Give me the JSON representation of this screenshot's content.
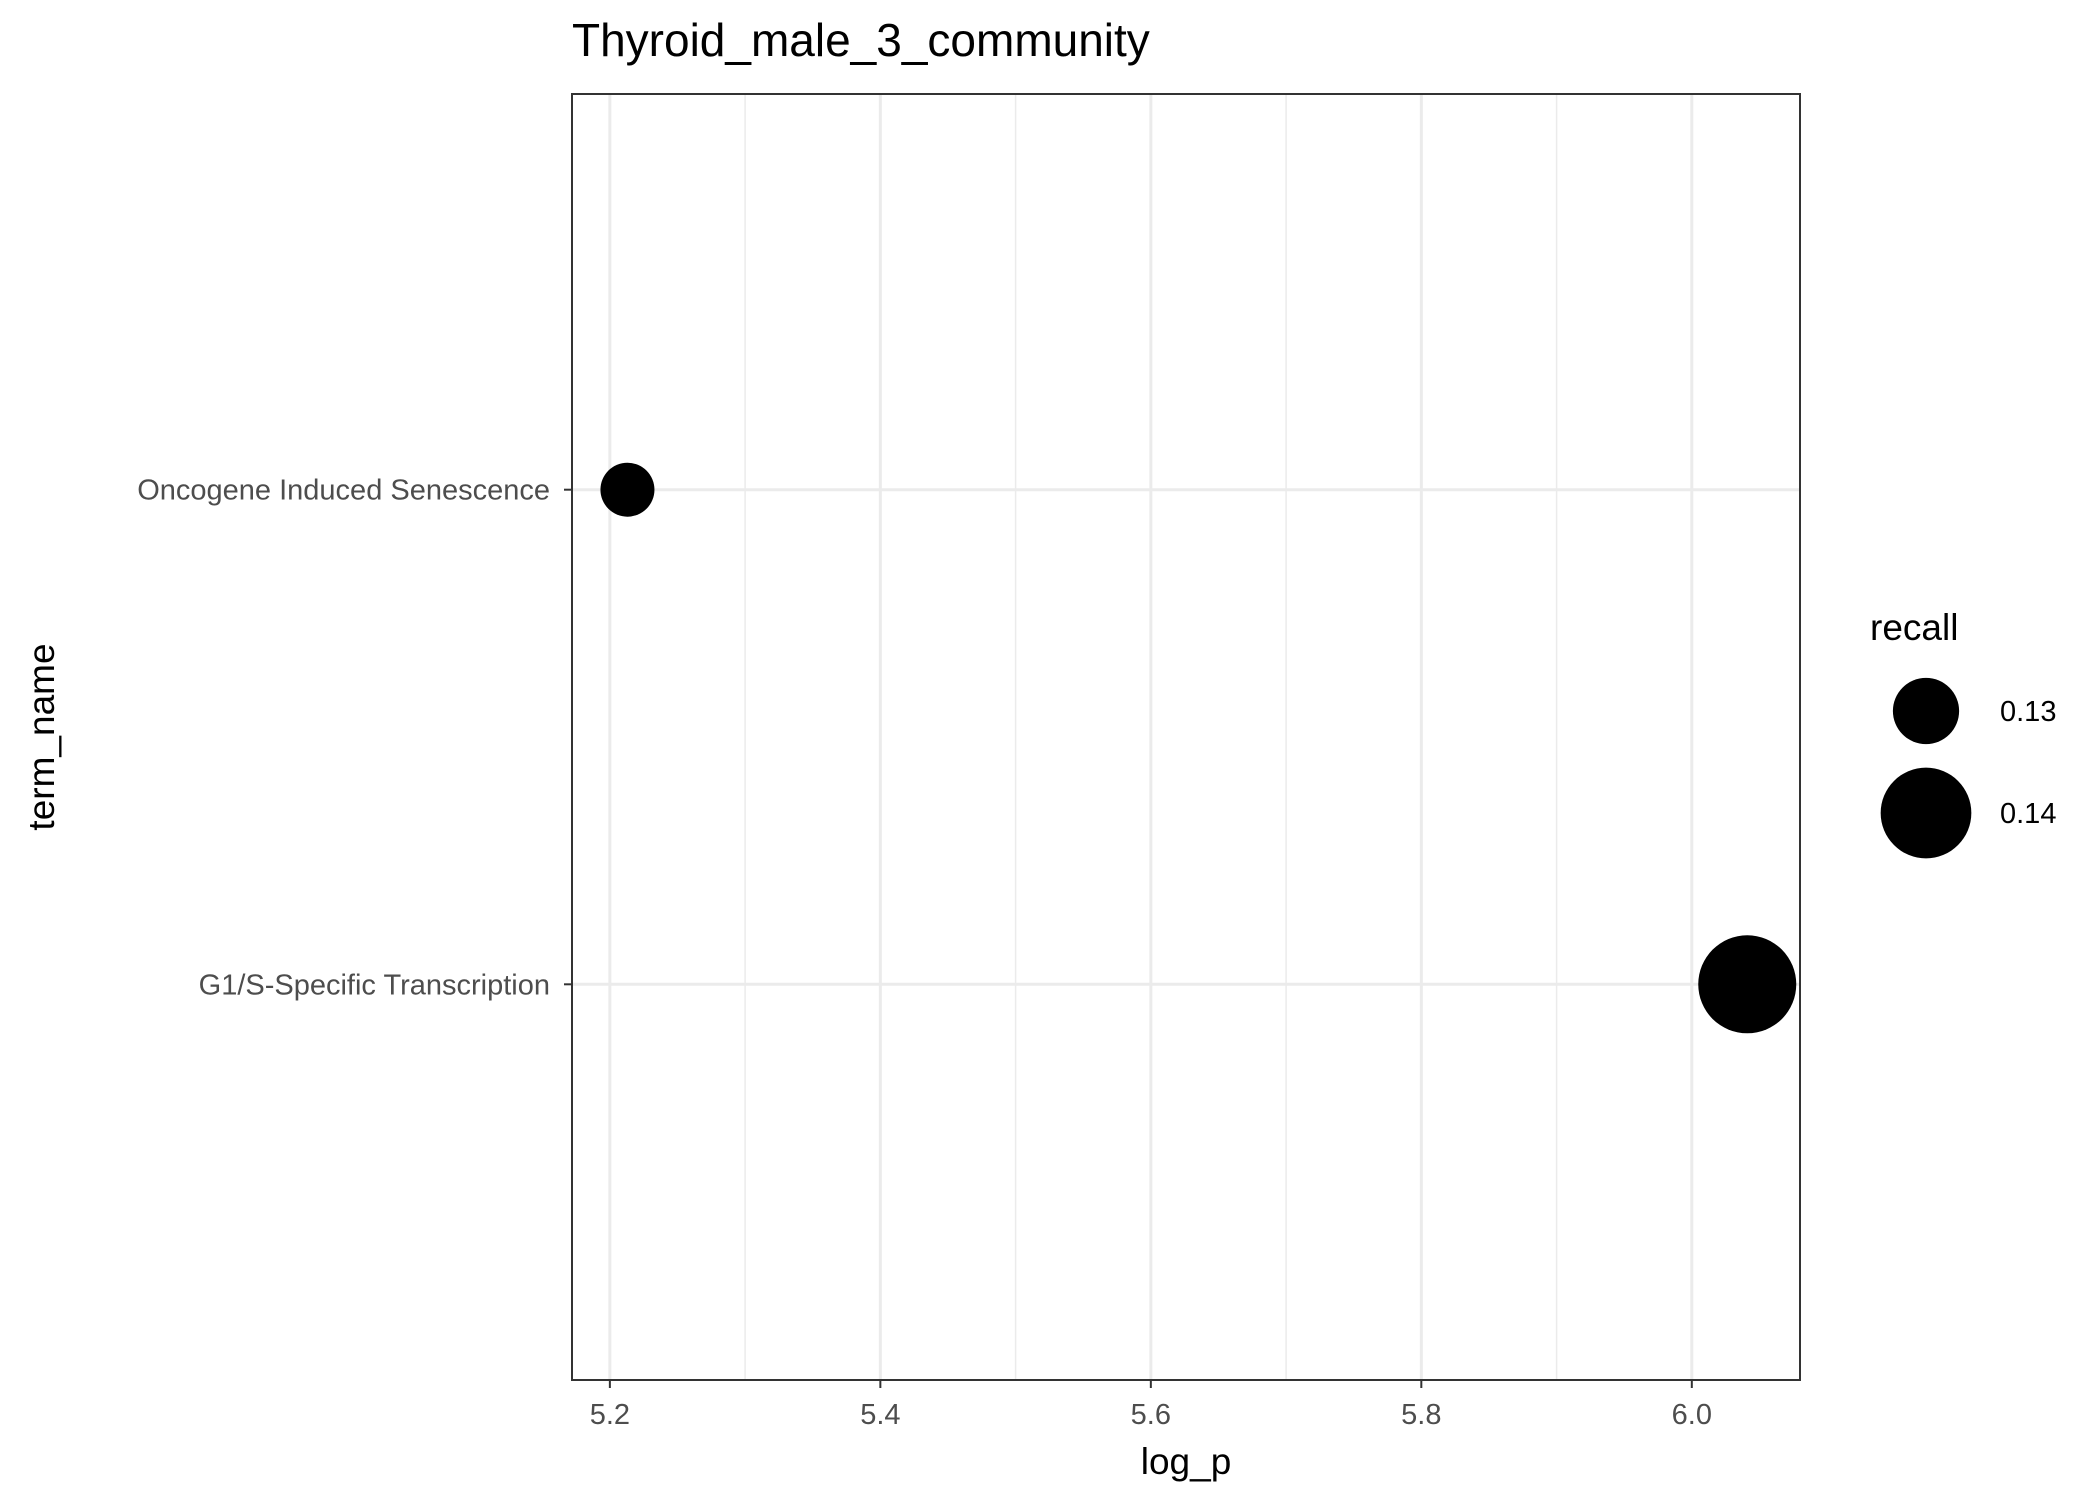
{
  "chart_data": {
    "type": "scatter",
    "title": "Thyroid_male_3_community",
    "xlabel": "log_p",
    "ylabel": "term_name",
    "xlim": [
      5.172,
      6.08
    ],
    "x_ticks": [
      "5.2",
      "5.4",
      "5.6",
      "5.8",
      "6.0"
    ],
    "x_tick_values": [
      5.2,
      5.4,
      5.6,
      5.8,
      6.0
    ],
    "categories": [
      "G1/S-Specific Transcription",
      "Oncogene Induced Senescence"
    ],
    "points": [
      {
        "term": "Oncogene Induced Senescence",
        "log_p": 5.213,
        "recall": 0.125
      },
      {
        "term": "G1/S-Specific Transcription",
        "log_p": 6.041,
        "recall": 0.143
      }
    ],
    "legend": {
      "title": "recall",
      "position": "right",
      "entries": [
        {
          "label": "0.13",
          "value": 0.13
        },
        {
          "label": "0.14",
          "value": 0.14
        }
      ]
    },
    "grid": true,
    "colors": {
      "point": "#000000",
      "grid": "#ebebeb",
      "panel_border": "#333333",
      "tick_text": "#4d4d4d",
      "title_text": "#000000"
    }
  }
}
